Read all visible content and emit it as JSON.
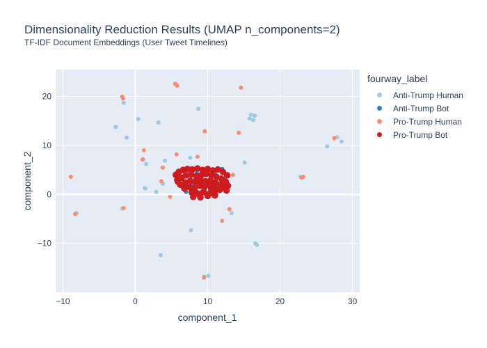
{
  "chart_data": {
    "type": "scatter",
    "title": "Dimensionality Reduction Results (UMAP n_components=2)",
    "subtitle": "TF-IDF Document Embeddings (User Tweet Timelines)",
    "xlabel": "component_1",
    "ylabel": "component_2",
    "xlim": [
      -11,
      31
    ],
    "ylim": [
      -20,
      25.5
    ],
    "xticks": [
      -10,
      0,
      10,
      20,
      30
    ],
    "yticks": [
      -10,
      0,
      10,
      20
    ],
    "grid": true,
    "legend_title": "fourway_label",
    "legend_placement": "right",
    "series": [
      {
        "name": "Anti-Trump Human",
        "color": "#9ecae1",
        "x": [
          1.5,
          16.0,
          16.5,
          15.8,
          16.3,
          8.7,
          0.4,
          -2.7,
          -1.2,
          3.2,
          15.1,
          26.5,
          27.9,
          28.5,
          22.8,
          1.1,
          1.3,
          1.4,
          4.1,
          7.6,
          3.8,
          -1.8,
          -8.1,
          13.3,
          16.6,
          16.8,
          7.7,
          3.5,
          9.5,
          10.1,
          -1.6,
          2.9
        ],
        "y": [
          6.2,
          16.3,
          16.1,
          15.5,
          15.2,
          17.5,
          15.4,
          13.8,
          11.6,
          14.7,
          6.5,
          9.8,
          11.7,
          10.8,
          3.6,
          7.2,
          1.3,
          1.2,
          6.9,
          7.5,
          2.2,
          -2.9,
          -3.8,
          -3.8,
          -10.0,
          -10.3,
          -7.3,
          -12.4,
          -16.8,
          -16.6,
          18.7,
          0.5
        ]
      },
      {
        "name": "Anti-Trump Bot",
        "color": "#3182bd",
        "x": [
          6.0,
          7.2,
          8.5,
          9.8,
          11.0,
          12.2,
          6.5,
          7.8,
          9.0,
          10.4,
          11.6,
          7.0,
          8.3,
          9.6,
          10.9,
          6.2,
          12.0,
          7.5,
          10.0,
          8.8
        ],
        "y": [
          3.0,
          3.8,
          4.4,
          4.6,
          4.2,
          3.2,
          1.5,
          2.0,
          2.5,
          2.2,
          1.6,
          0.5,
          0.9,
          0.7,
          0.3,
          4.5,
          5.2,
          5.3,
          5.4,
          -0.4
        ]
      },
      {
        "name": "Pro-Trump Human",
        "color": "#fc8d6c",
        "x": [
          5.5,
          5.8,
          14.6,
          9.6,
          14.3,
          23.2,
          23.0,
          27.5,
          -8.9,
          -8.3,
          -1.6,
          12.0,
          13.0,
          9.5,
          1.2,
          1.0,
          5.7,
          8.6,
          4.8,
          3.6,
          3.8,
          13.5,
          9.2,
          -1.8,
          -1.7
        ],
        "y": [
          22.6,
          22.2,
          21.8,
          12.9,
          12.6,
          3.6,
          3.4,
          11.5,
          3.6,
          -4.0,
          -2.8,
          -5.4,
          -3.0,
          -17.0,
          9.0,
          7.1,
          8.2,
          7.7,
          -0.5,
          2.7,
          5.5,
          4.0,
          1.5,
          20.0,
          19.6
        ]
      },
      {
        "name": "Pro-Trump Bot",
        "color": "#d01c1f",
        "x": [
          5.6,
          6.0,
          6.6,
          7.2,
          7.9,
          8.6,
          9.3,
          10.0,
          10.7,
          11.4,
          12.1,
          12.7,
          5.8,
          6.4,
          7.0,
          7.7,
          8.4,
          9.1,
          9.8,
          10.5,
          11.2,
          11.9,
          12.5,
          6.2,
          6.9,
          7.6,
          8.3,
          9.0,
          9.7,
          10.4,
          11.1,
          11.8,
          12.4,
          6.8,
          7.5,
          8.2,
          8.9,
          9.6,
          10.3,
          11.0,
          11.7,
          7.8,
          8.6,
          9.4,
          10.2,
          11.0,
          8.0,
          9.0,
          10.0,
          11.0,
          9.5,
          10.5,
          6.1,
          12.8,
          5.9,
          12.6
        ],
        "y": [
          4.0,
          4.6,
          5.0,
          5.2,
          5.1,
          5.3,
          5.0,
          5.2,
          4.9,
          5.1,
          4.6,
          3.9,
          3.0,
          3.4,
          3.9,
          4.1,
          3.7,
          3.9,
          4.2,
          4.0,
          3.6,
          3.2,
          2.6,
          2.0,
          2.4,
          2.8,
          2.6,
          3.0,
          2.7,
          2.9,
          2.4,
          2.0,
          1.4,
          1.2,
          1.5,
          1.3,
          1.8,
          1.6,
          1.9,
          1.3,
          1.0,
          0.4,
          0.2,
          0.5,
          0.1,
          0.4,
          -0.5,
          -0.6,
          -0.3,
          -0.2,
          2.2,
          1.1,
          3.5,
          1.8,
          2.6,
          0.8
        ]
      }
    ]
  }
}
